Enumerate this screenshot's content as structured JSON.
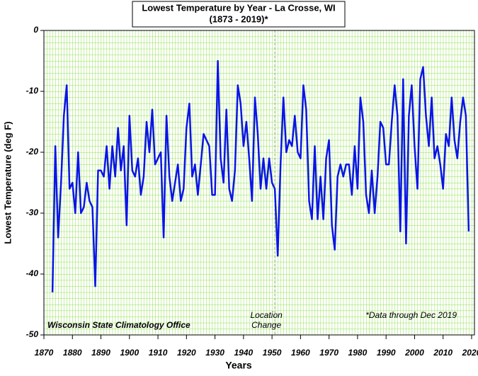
{
  "chart_data": {
    "type": "line",
    "title": "Lowest Temperature by Year - La Crosse, WI",
    "subtitle": "(1873 - 2019)*",
    "x_label": "Years",
    "y_label": "Lowest Temperature (deg F)",
    "x": [
      1873,
      1874,
      1875,
      1876,
      1877,
      1878,
      1879,
      1880,
      1881,
      1882,
      1883,
      1884,
      1885,
      1886,
      1887,
      1888,
      1889,
      1890,
      1891,
      1892,
      1893,
      1894,
      1895,
      1896,
      1897,
      1898,
      1899,
      1900,
      1901,
      1902,
      1903,
      1904,
      1905,
      1906,
      1907,
      1908,
      1909,
      1910,
      1911,
      1912,
      1913,
      1914,
      1915,
      1916,
      1917,
      1918,
      1919,
      1920,
      1921,
      1922,
      1923,
      1924,
      1925,
      1926,
      1927,
      1928,
      1929,
      1930,
      1931,
      1932,
      1933,
      1934,
      1935,
      1936,
      1937,
      1938,
      1939,
      1940,
      1941,
      1942,
      1943,
      1944,
      1945,
      1946,
      1947,
      1948,
      1949,
      1950,
      1951,
      1952,
      1953,
      1954,
      1955,
      1956,
      1957,
      1958,
      1959,
      1960,
      1961,
      1962,
      1963,
      1964,
      1965,
      1966,
      1967,
      1968,
      1969,
      1970,
      1971,
      1972,
      1973,
      1974,
      1975,
      1976,
      1977,
      1978,
      1979,
      1980,
      1981,
      1982,
      1983,
      1984,
      1985,
      1986,
      1987,
      1988,
      1989,
      1990,
      1991,
      1992,
      1993,
      1994,
      1995,
      1996,
      1997,
      1998,
      1999,
      2000,
      2001,
      2002,
      2003,
      2004,
      2005,
      2006,
      2007,
      2008,
      2009,
      2010,
      2011,
      2012,
      2013,
      2014,
      2015,
      2016,
      2017,
      2018,
      2019
    ],
    "values": [
      -43,
      -19,
      -34,
      -25,
      -14,
      -9,
      -26,
      -25,
      -30,
      -20,
      -30,
      -29,
      -25,
      -28,
      -29,
      -42,
      -23,
      -23,
      -24,
      -19,
      -26,
      -19,
      -24,
      -16,
      -23,
      -19,
      -32,
      -14,
      -23,
      -24,
      -21,
      -27,
      -24,
      -15,
      -20,
      -13,
      -22,
      -21,
      -20,
      -34,
      -14,
      -24,
      -28,
      -25,
      -22,
      -28,
      -26,
      -16,
      -12,
      -24,
      -22,
      -27,
      -22,
      -17,
      -18,
      -19,
      -27,
      -27,
      -5,
      -21,
      -25,
      -13,
      -26,
      -28,
      -23,
      -9,
      -12,
      -19,
      -15,
      -21,
      -28,
      -11,
      -17,
      -26,
      -21,
      -26,
      -21,
      -25,
      -26,
      -37,
      -22,
      -11,
      -20,
      -18,
      -19,
      -14,
      -20,
      -21,
      -9,
      -13,
      -28,
      -31,
      -19,
      -31,
      -24,
      -31,
      -21,
      -18,
      -32,
      -36,
      -24,
      -22,
      -24,
      -22,
      -22,
      -27,
      -19,
      -26,
      -11,
      -15,
      -27,
      -30,
      -23,
      -30,
      -24,
      -15,
      -16,
      -22,
      -22,
      -15,
      -9,
      -14,
      -33,
      -8,
      -35,
      -14,
      -9,
      -19,
      -26,
      -8,
      -6,
      -14,
      -19,
      -11,
      -21,
      -19,
      -22,
      -26,
      -17,
      -19,
      -11,
      -18,
      -21,
      -15,
      -11,
      -14,
      -33
    ],
    "color": "#0a14e6",
    "xlim": [
      1870,
      2021
    ],
    "ylim": [
      -50,
      0
    ],
    "xticks": [
      1870,
      1880,
      1890,
      1900,
      1910,
      1920,
      1930,
      1940,
      1950,
      1960,
      1970,
      1980,
      1990,
      2000,
      2010,
      2020
    ],
    "yticks": [
      0,
      -10,
      -20,
      -30,
      -40,
      -50
    ],
    "grid": true,
    "grid_color": "#8ee04c",
    "location_change": {
      "x": 1951,
      "label": [
        "Location",
        "Change"
      ]
    },
    "source_note": "Wisconsin State Climatology Office",
    "data_note": "*Data through Dec 2019"
  }
}
